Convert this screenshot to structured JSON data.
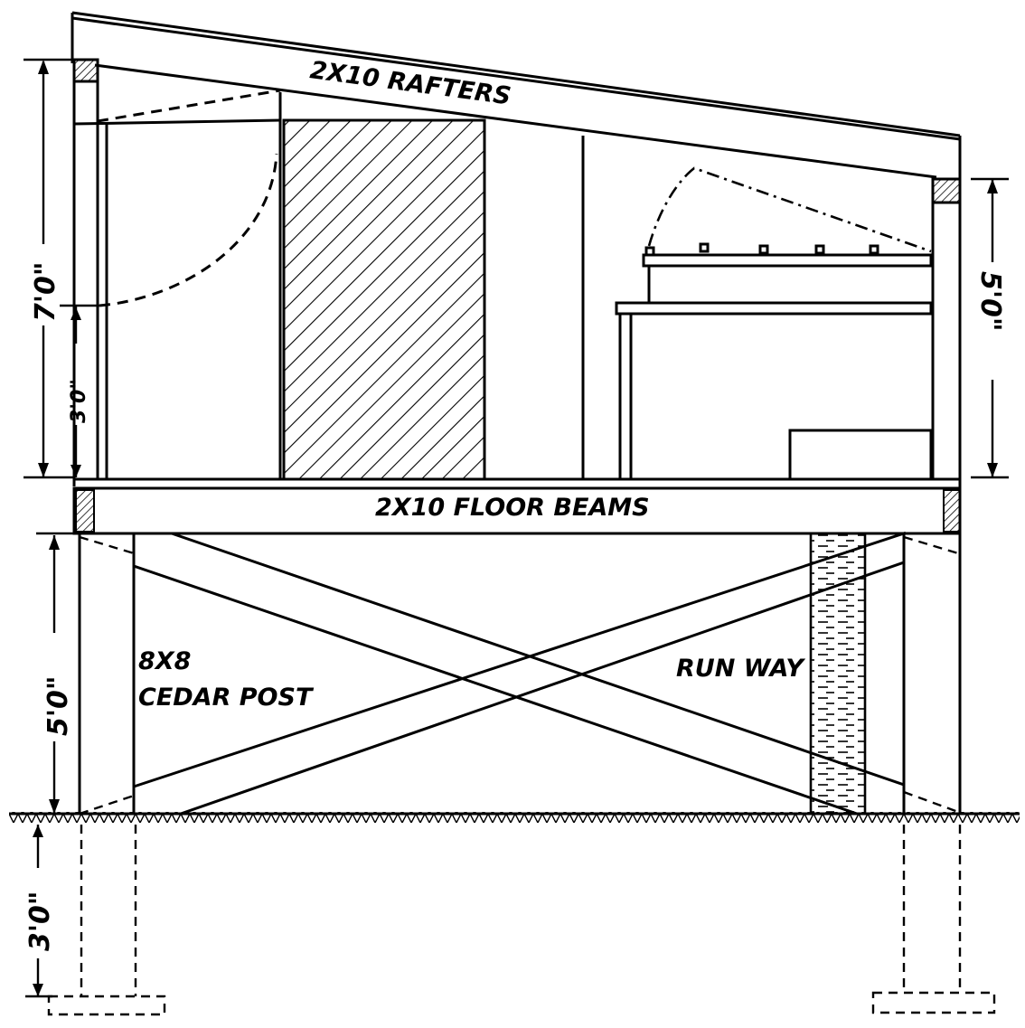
{
  "labels": {
    "rafters": "2X10 RAFTERS",
    "floor_beams": "2X10 FLOOR BEAMS",
    "post_size": "8X8",
    "post_name": "CEDAR POST",
    "runway": "RUN WAY"
  },
  "dimensions": {
    "front_wall_height": "7'0\"",
    "door_sill_height": "3'0\"",
    "rear_wall_height": "5'0\"",
    "post_height": "5'0\"",
    "footing_depth": "3'0\""
  }
}
